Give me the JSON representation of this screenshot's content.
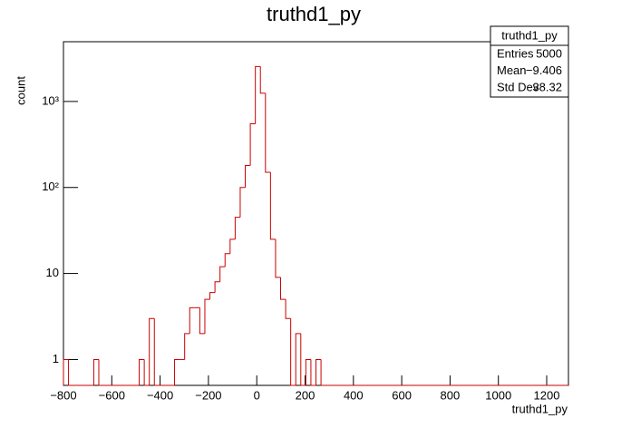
{
  "chart_data": {
    "type": "histogram",
    "title": "truthd1_py",
    "xlabel": "truthd1_py",
    "ylabel": "count",
    "log_y": true,
    "color": "#cc0000",
    "bins": [
      -800,
      -779.1,
      -758.2,
      -737.3,
      -716.4,
      -695.5,
      -674.6,
      -653.7,
      -632.8,
      -611.9,
      -591,
      -570.1,
      -549.2,
      -528.3,
      -507.4,
      -486.5,
      -465.6,
      -444.7,
      -423.8,
      -402.9,
      -382,
      -361.1,
      -340.2,
      -319.3,
      -298.4,
      -277.5,
      -256.6,
      -235.7,
      -214.8,
      -193.9,
      -173,
      -152.1,
      -131.2,
      -110.3,
      -89.4,
      -68.5,
      -47.6,
      -26.7,
      -5.8,
      15.1,
      36,
      56.9,
      77.8,
      98.7,
      119.6,
      140.5,
      161.4,
      182.3,
      203.2,
      224.1,
      245,
      265.9,
      286.8,
      307.7,
      328.6,
      349.5,
      370.4,
      391.3,
      412.2,
      433.1,
      454,
      474.9,
      495.8,
      516.7,
      537.6,
      558.5,
      579.4,
      600.3,
      621.2,
      642.1,
      663,
      683.9,
      704.8,
      725.7,
      746.6,
      767.5,
      788.4,
      809.3,
      830.2,
      851.1,
      872,
      892.9,
      913.8,
      934.7,
      955.6,
      976.5,
      997.4,
      1018.3,
      1039.2,
      1060.1,
      1081,
      1101.9,
      1122.8,
      1143.7,
      1164.6,
      1185.5,
      1206.4,
      1227.3,
      1248.2,
      1269.1,
      1290
    ],
    "counts": [
      1,
      0,
      0,
      0,
      0,
      0,
      1,
      0,
      0,
      0,
      0,
      0,
      0,
      0,
      0,
      1,
      0,
      3,
      0,
      0,
      0,
      0,
      1,
      1,
      2,
      4,
      4,
      2,
      5,
      6,
      8,
      12,
      17,
      25,
      45,
      100,
      180,
      550,
      2550,
      1250,
      150,
      25,
      9,
      5,
      3,
      0,
      2,
      0,
      1,
      0,
      1,
      0,
      0,
      0,
      0,
      0,
      0,
      0,
      0,
      0,
      0,
      0,
      0,
      0,
      0,
      0,
      0,
      0,
      0,
      0,
      0,
      0,
      0,
      0,
      0,
      0,
      0,
      0,
      0,
      0,
      0,
      0,
      0,
      0,
      0,
      0,
      0,
      0,
      0,
      0,
      0,
      0,
      0,
      0,
      0,
      0,
      0,
      0,
      0,
      0
    ],
    "xlim": [
      -800,
      1290
    ],
    "ylim": [
      0.5,
      4950
    ],
    "xticks": [
      {
        "value": -800,
        "label": "−800"
      },
      {
        "value": -600,
        "label": "−600"
      },
      {
        "value": -400,
        "label": "−400"
      },
      {
        "value": -200,
        "label": "−200"
      },
      0,
      200,
      400,
      600,
      800,
      1000,
      1200
    ],
    "yticks": [
      1,
      10,
      {
        "value": 100,
        "label": "10²"
      },
      {
        "value": 1000,
        "label": "10³"
      }
    ],
    "stats": {
      "title": "truthd1_py",
      "rows": [
        [
          "Entries",
          "5000"
        ],
        [
          "Mean",
          "−9.406"
        ],
        [
          "Std Dev",
          "38.32"
        ]
      ]
    }
  }
}
